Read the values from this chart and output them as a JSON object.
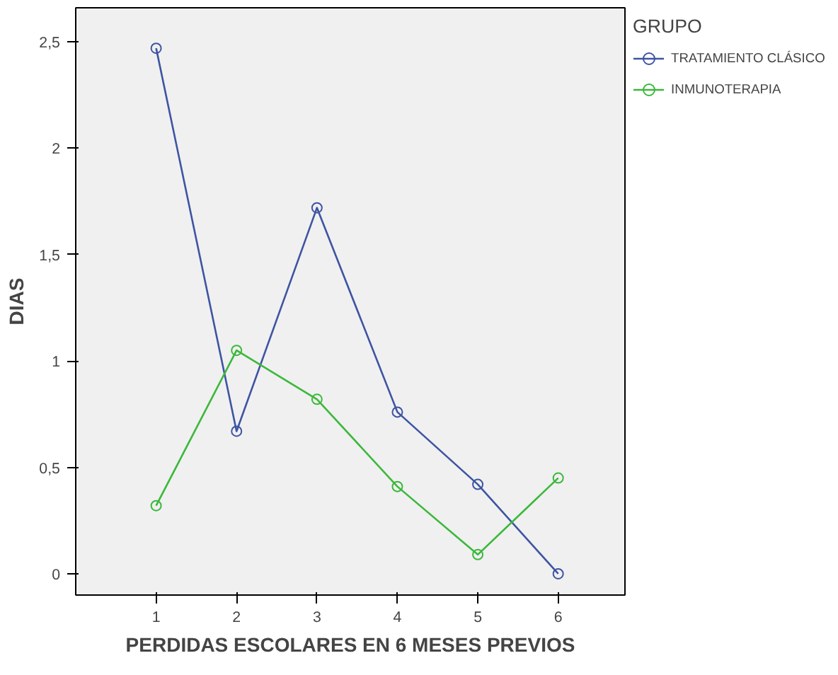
{
  "chart_data": {
    "type": "line",
    "xlabel": "PERDIDAS ESCOLARES EN 6 MESES PREVIOS",
    "ylabel": "DIAS",
    "legend_title": "GRUPO",
    "x": [
      1,
      2,
      3,
      4,
      5,
      6
    ],
    "series": [
      {
        "name": "TRATAMIENTO CLÁSICO",
        "color": "#3e54a3",
        "values": [
          2.47,
          0.67,
          1.72,
          0.76,
          0.42,
          0.0
        ]
      },
      {
        "name": "INMUNOTERAPIA",
        "color": "#3cb83c",
        "values": [
          0.32,
          1.05,
          0.82,
          0.41,
          0.09,
          0.45
        ]
      }
    ],
    "xlim": [
      0,
      6.83
    ],
    "ylim": [
      -0.1,
      2.66
    ],
    "xticks": [
      1,
      2,
      3,
      4,
      5,
      6
    ],
    "yticks": [
      {
        "value": 0,
        "label": "0"
      },
      {
        "value": 0.5,
        "label": "0,5"
      },
      {
        "value": 1,
        "label": "1"
      },
      {
        "value": 1.5,
        "label": "1,5"
      },
      {
        "value": 2,
        "label": "2"
      },
      {
        "value": 2.5,
        "label": "2,5"
      }
    ],
    "marker": "circle",
    "line_style": "solid",
    "grid": false,
    "legend": "right"
  }
}
